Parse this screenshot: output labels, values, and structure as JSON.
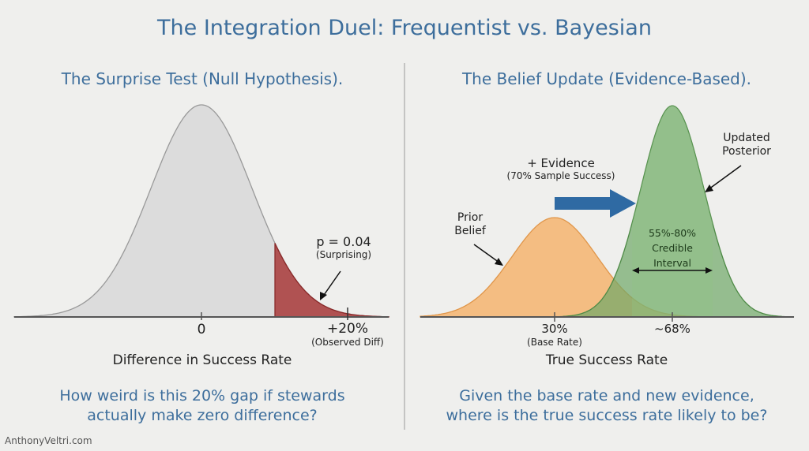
{
  "title": "The Integration Duel: Frequentist vs. Bayesian",
  "left": {
    "subtitle": "The Surprise Test (Null Hypothesis).",
    "annotation_main": "p = 0.04",
    "annotation_sub": "(Surprising)",
    "tick_zero": "0",
    "tick_observed": "+20%",
    "tick_observed_sub": "(Observed Diff)",
    "axis_label": "Difference in Success Rate",
    "question_line1": "How weird is this 20% gap if stewards",
    "question_line2": "actually make zero difference?",
    "colors": {
      "null_curve": "#dcdcdc",
      "tail": "#a83a3a"
    }
  },
  "right": {
    "subtitle": "The Belief Update (Evidence-Based).",
    "evidence_main": "+ Evidence",
    "evidence_sub": "(70% Sample Success)",
    "prior_line1": "Prior",
    "prior_line2": "Belief",
    "posterior_line1": "Updated",
    "posterior_line2": "Posterior",
    "interval_line1": "55%-80%",
    "interval_line2": "Credible",
    "interval_line3": "Interval",
    "tick_prior": "30%",
    "tick_prior_sub": "(Base Rate)",
    "tick_posterior": "~68%",
    "axis_label": "True Success Rate",
    "question_line1": "Given the base rate and new evidence,",
    "question_line2": "where is the true success rate likely to be?",
    "colors": {
      "prior": "#f5b46e",
      "posterior": "#6fa866",
      "arrow": "#2f6aa3"
    }
  },
  "watermark": "AnthonyVeltri.com"
}
